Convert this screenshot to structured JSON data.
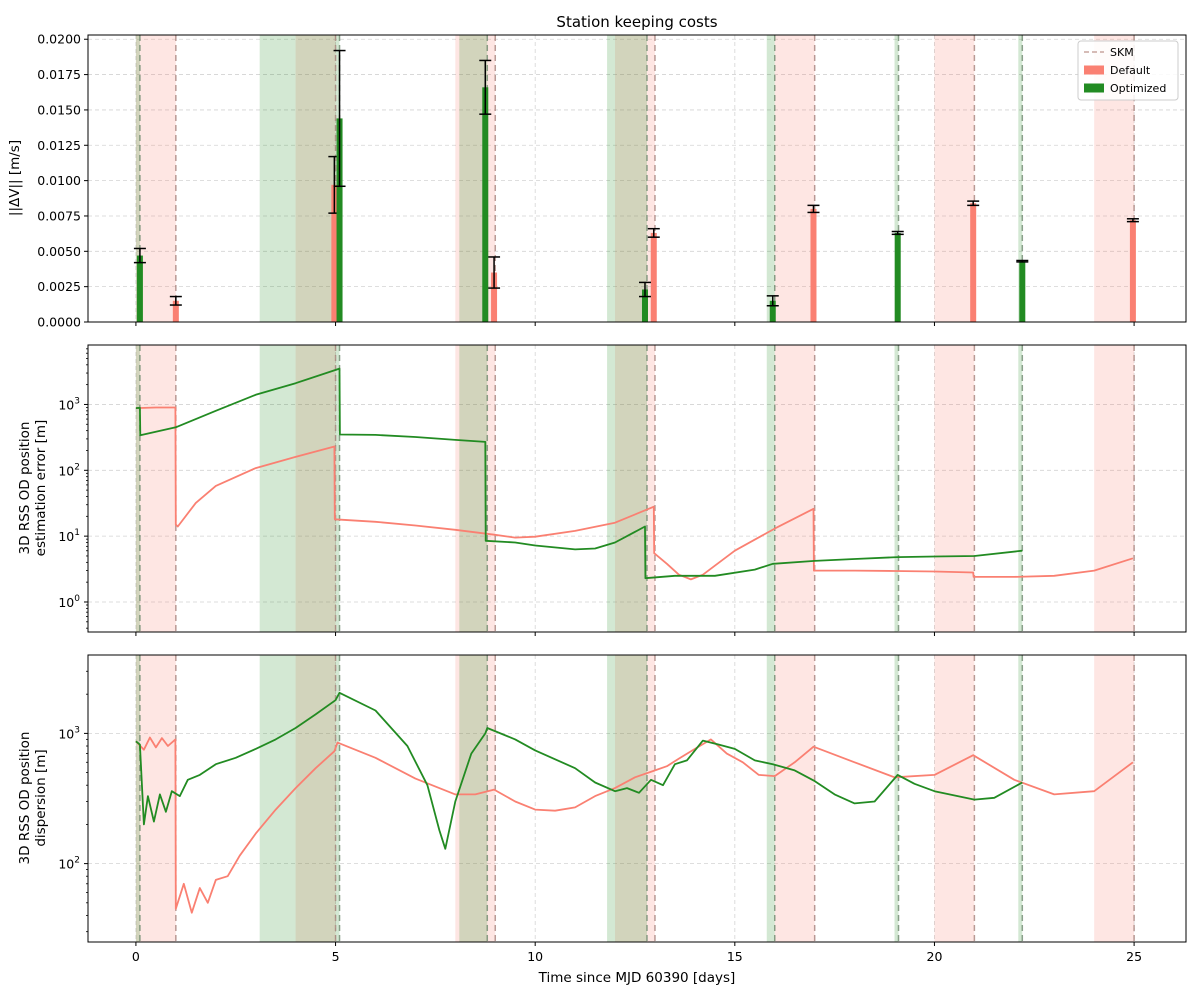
{
  "chart_data": [
    {
      "type": "bar",
      "title": "Station keeping costs",
      "ylabel": "||ΔV|| [m/s]",
      "xlabel": "",
      "xlim": [
        -1.2,
        26.3
      ],
      "ylim": [
        0,
        0.0203
      ],
      "yticks": [
        0.0,
        0.0025,
        0.005,
        0.0075,
        0.01,
        0.0125,
        0.015,
        0.0175,
        0.02
      ],
      "ytick_labels": [
        "0.0000",
        "0.0025",
        "0.0050",
        "0.0075",
        "0.0100",
        "0.0125",
        "0.0150",
        "0.0175",
        "0.0200"
      ],
      "xticks": [
        0,
        5,
        10,
        15,
        20,
        25
      ],
      "grid": true,
      "legend": {
        "placement": "top-right",
        "entries": [
          {
            "label": "SKM",
            "style": "dashed",
            "color": "#c9a59f"
          },
          {
            "label": "Default",
            "style": "patch",
            "color": "#fa8072"
          },
          {
            "label": "Optimized",
            "style": "patch",
            "color": "#228b22"
          }
        ]
      },
      "series": [
        {
          "name": "Default",
          "color": "#fa8072",
          "x": [
            1.0,
            4.97,
            8.97,
            12.97,
            16.97,
            20.97,
            24.97
          ],
          "values": [
            0.0015,
            0.0097,
            0.0035,
            0.0063,
            0.008,
            0.0084,
            0.0072
          ],
          "err": [
            0.0003,
            0.002,
            0.0011,
            0.0003,
            0.00025,
            0.00015,
            0.0001
          ]
        },
        {
          "name": "Optimized",
          "color": "#228b22",
          "x": [
            0.1,
            5.1,
            8.75,
            12.75,
            15.95,
            19.08,
            22.2
          ],
          "values": [
            0.0047,
            0.0144,
            0.0166,
            0.0023,
            0.0015,
            0.0063,
            0.0043
          ],
          "err": [
            0.0005,
            0.0048,
            0.0019,
            0.0005,
            0.00035,
            0.0001,
            5e-05
          ]
        }
      ]
    },
    {
      "type": "line",
      "ylabel": [
        "3D RSS OD position",
        "estimation error [m]"
      ],
      "xlabel": "",
      "yscale": "log",
      "ylim": [
        0.35,
        8000
      ],
      "yticks": [
        1,
        10,
        100,
        1000
      ],
      "ytick_labels": [
        "10^0",
        "10^1",
        "10^2",
        "10^3"
      ],
      "xticks": [
        0,
        5,
        10,
        15,
        20,
        25
      ],
      "grid": true,
      "series": [
        {
          "name": "Default",
          "color": "#fa8072",
          "points": [
            [
              0,
              880
            ],
            [
              0.5,
              900
            ],
            [
              0.99,
              900
            ],
            [
              1.0,
              15
            ],
            [
              1.05,
              14
            ],
            [
              1.5,
              32
            ],
            [
              2,
              58
            ],
            [
              3,
              108
            ],
            [
              4,
              160
            ],
            [
              4.97,
              230
            ],
            [
              4.98,
              18
            ],
            [
              6,
              16.5
            ],
            [
              7,
              14.5
            ],
            [
              8,
              12.5
            ],
            [
              8.97,
              10.5
            ],
            [
              9.5,
              9.5
            ],
            [
              10,
              9.8
            ],
            [
              11,
              12
            ],
            [
              12,
              16
            ],
            [
              12.97,
              28
            ],
            [
              12.98,
              5.5
            ],
            [
              13.3,
              3.8
            ],
            [
              13.6,
              2.6
            ],
            [
              13.9,
              2.2
            ],
            [
              14.2,
              2.6
            ],
            [
              15,
              6
            ],
            [
              16,
              13
            ],
            [
              16.97,
              26
            ],
            [
              16.98,
              3
            ],
            [
              18,
              3
            ],
            [
              19,
              2.95
            ],
            [
              20,
              2.9
            ],
            [
              20.97,
              2.8
            ],
            [
              20.98,
              2.4
            ],
            [
              22,
              2.4
            ],
            [
              23,
              2.5
            ],
            [
              24,
              3
            ],
            [
              24.97,
              4.6
            ]
          ]
        },
        {
          "name": "Optimized",
          "color": "#228b22",
          "points": [
            [
              0,
              880
            ],
            [
              0.1,
              890
            ],
            [
              0.11,
              340
            ],
            [
              1,
              450
            ],
            [
              2,
              800
            ],
            [
              3,
              1400
            ],
            [
              4,
              2100
            ],
            [
              5.1,
              3500
            ],
            [
              5.11,
              350
            ],
            [
              6,
              345
            ],
            [
              7,
              320
            ],
            [
              8,
              290
            ],
            [
              8.75,
              270
            ],
            [
              8.76,
              8.5
            ],
            [
              9.5,
              8
            ],
            [
              10,
              7.2
            ],
            [
              11,
              6.3
            ],
            [
              11.5,
              6.5
            ],
            [
              12,
              8
            ],
            [
              12.75,
              14
            ],
            [
              12.76,
              2.3
            ],
            [
              13.5,
              2.5
            ],
            [
              14.5,
              2.5
            ],
            [
              15.5,
              3.1
            ],
            [
              15.95,
              3.8
            ],
            [
              15.96,
              3.8
            ],
            [
              17,
              4.2
            ],
            [
              18,
              4.5
            ],
            [
              19.08,
              4.8
            ],
            [
              20,
              4.9
            ],
            [
              21,
              5
            ],
            [
              22.2,
              6
            ]
          ]
        }
      ]
    },
    {
      "type": "line",
      "ylabel": [
        "3D RSS OD position",
        "dispersion [m]"
      ],
      "xlabel": "Time since MJD 60390 [days]",
      "yscale": "log",
      "ylim": [
        25,
        4000
      ],
      "yticks": [
        100,
        1000
      ],
      "ytick_labels": [
        "10^2",
        "10^3"
      ],
      "xticks": [
        0,
        5,
        10,
        15,
        20,
        25
      ],
      "xtick_labels": [
        "0",
        "5",
        "10",
        "15",
        "20",
        "25"
      ],
      "grid": true,
      "series": [
        {
          "name": "Default",
          "color": "#fa8072",
          "points": [
            [
              0,
              870
            ],
            [
              0.2,
              750
            ],
            [
              0.35,
              930
            ],
            [
              0.5,
              780
            ],
            [
              0.65,
              920
            ],
            [
              0.8,
              800
            ],
            [
              0.99,
              900
            ],
            [
              1.0,
              45
            ],
            [
              1.2,
              70
            ],
            [
              1.4,
              42
            ],
            [
              1.6,
              65
            ],
            [
              1.8,
              50
            ],
            [
              2,
              75
            ],
            [
              2.3,
              80
            ],
            [
              2.6,
              115
            ],
            [
              3,
              170
            ],
            [
              3.5,
              260
            ],
            [
              4,
              380
            ],
            [
              4.5,
              540
            ],
            [
              4.97,
              730
            ],
            [
              5.05,
              850
            ],
            [
              6,
              650
            ],
            [
              7,
              450
            ],
            [
              8,
              340
            ],
            [
              8.5,
              340
            ],
            [
              8.97,
              370
            ],
            [
              9.5,
              300
            ],
            [
              10,
              260
            ],
            [
              10.5,
              255
            ],
            [
              11,
              270
            ],
            [
              11.5,
              330
            ],
            [
              12,
              380
            ],
            [
              12.5,
              460
            ],
            [
              13,
              520
            ],
            [
              13.3,
              560
            ],
            [
              13.6,
              640
            ],
            [
              14,
              760
            ],
            [
              14.4,
              900
            ],
            [
              14.8,
              700
            ],
            [
              15.2,
              600
            ],
            [
              15.6,
              480
            ],
            [
              16,
              470
            ],
            [
              16.5,
              600
            ],
            [
              16.97,
              790
            ],
            [
              18,
              600
            ],
            [
              19,
              460
            ],
            [
              20,
              480
            ],
            [
              20.97,
              680
            ],
            [
              22,
              440
            ],
            [
              23,
              340
            ],
            [
              24,
              360
            ],
            [
              24.97,
              600
            ]
          ]
        },
        {
          "name": "Optimized",
          "color": "#228b22",
          "points": [
            [
              0,
              870
            ],
            [
              0.1,
              820
            ],
            [
              0.2,
              200
            ],
            [
              0.3,
              330
            ],
            [
              0.45,
              210
            ],
            [
              0.6,
              340
            ],
            [
              0.75,
              250
            ],
            [
              0.9,
              360
            ],
            [
              1.1,
              330
            ],
            [
              1.3,
              440
            ],
            [
              1.6,
              480
            ],
            [
              2,
              580
            ],
            [
              2.5,
              650
            ],
            [
              3,
              760
            ],
            [
              3.5,
              900
            ],
            [
              4,
              1100
            ],
            [
              4.5,
              1400
            ],
            [
              5.0,
              1800
            ],
            [
              5.1,
              2050
            ],
            [
              6,
              1500
            ],
            [
              6.8,
              800
            ],
            [
              7.3,
              400
            ],
            [
              7.6,
              180
            ],
            [
              7.75,
              130
            ],
            [
              8.0,
              300
            ],
            [
              8.4,
              700
            ],
            [
              8.75,
              1000
            ],
            [
              8.8,
              1100
            ],
            [
              9.5,
              900
            ],
            [
              10,
              740
            ],
            [
              11,
              540
            ],
            [
              11.5,
              420
            ],
            [
              12,
              360
            ],
            [
              12.3,
              380
            ],
            [
              12.6,
              350
            ],
            [
              12.9,
              440
            ],
            [
              13.2,
              400
            ],
            [
              13.5,
              580
            ],
            [
              13.8,
              620
            ],
            [
              14.2,
              880
            ],
            [
              14.6,
              820
            ],
            [
              15,
              760
            ],
            [
              15.5,
              620
            ],
            [
              15.95,
              580
            ],
            [
              16.5,
              520
            ],
            [
              17,
              430
            ],
            [
              17.5,
              340
            ],
            [
              18,
              290
            ],
            [
              18.5,
              300
            ],
            [
              19.08,
              480
            ],
            [
              19.5,
              410
            ],
            [
              20,
              360
            ],
            [
              21,
              310
            ],
            [
              21.5,
              320
            ],
            [
              22.2,
              420
            ]
          ]
        }
      ]
    }
  ],
  "shading": {
    "default_color": "#fa8072",
    "optimized_color": "#228b22",
    "default_spans": [
      [
        0,
        1
      ],
      [
        4.0,
        5.0
      ],
      [
        8.0,
        9.0
      ],
      [
        12.0,
        13.0
      ],
      [
        16.0,
        17.0
      ],
      [
        20.0,
        21.0
      ],
      [
        24.0,
        25.0
      ]
    ],
    "optimized_spans": [
      [
        0,
        0.1
      ],
      [
        3.1,
        5.1
      ],
      [
        8.1,
        8.8
      ],
      [
        11.8,
        12.8
      ],
      [
        15.8,
        16.0
      ],
      [
        19.0,
        19.1
      ],
      [
        22.1,
        22.2
      ]
    ],
    "skm_default": [
      1,
      5,
      9,
      13,
      17,
      21,
      25
    ],
    "skm_optimized": [
      0.1,
      5.1,
      8.8,
      12.8,
      16.0,
      19.1,
      22.2
    ]
  }
}
